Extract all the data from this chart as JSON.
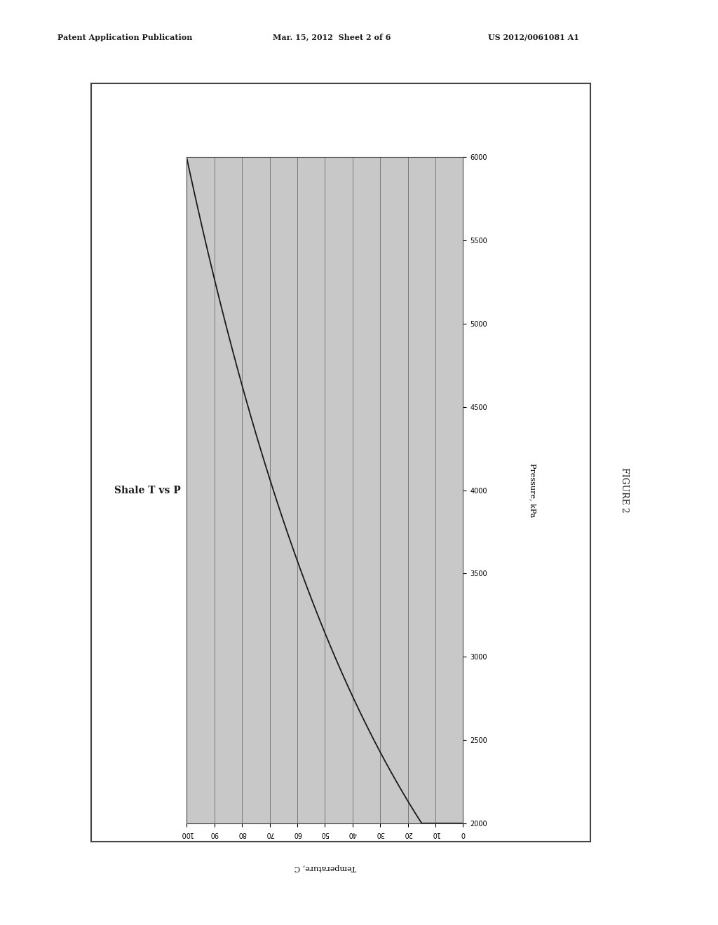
{
  "title": "Shale T vs P",
  "xlabel": "Temperature, C",
  "ylabel": "Pressure, kPa",
  "figure_label": "FIGURE 2",
  "patent_line1": "Patent Application Publication",
  "patent_line2": "Mar. 15, 2012  Sheet 2 of 6",
  "patent_line3": "US 2012/0061081 A1",
  "x_min": 0,
  "x_max": 100,
  "y_min": 2000,
  "y_max": 6000,
  "x_ticks": [
    0,
    10,
    20,
    30,
    40,
    50,
    60,
    70,
    80,
    90,
    100
  ],
  "y_ticks": [
    2000,
    2500,
    3000,
    3500,
    4000,
    4500,
    5000,
    5500,
    6000
  ],
  "background_color": "#c8c8c8",
  "outer_bg": "#ffffff",
  "curve_color": "#1a1a1a",
  "grid_color": "#666666",
  "border_color": "#444444",
  "title_fontsize": 10,
  "axis_label_fontsize": 8,
  "tick_fontsize": 7,
  "curve_linewidth": 1.3,
  "T_ref": 15.0,
  "P_ref": 2000.0,
  "k": 0.01292
}
